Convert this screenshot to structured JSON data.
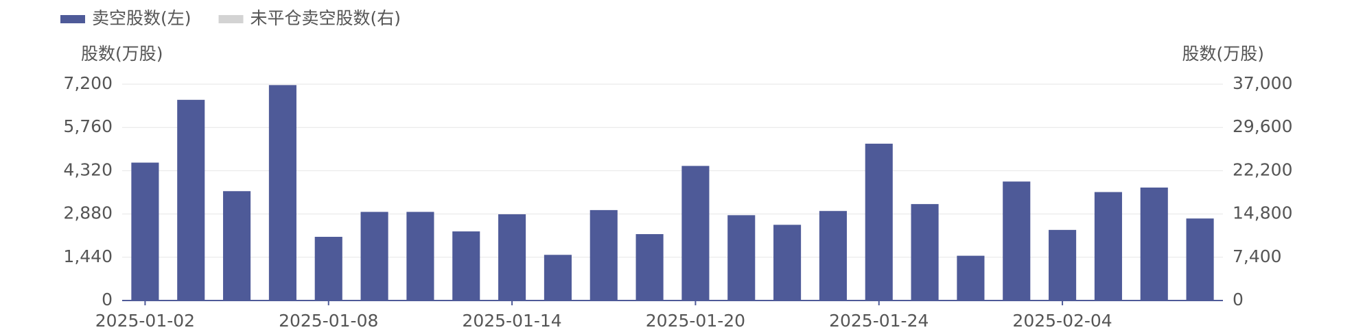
{
  "chart_data": {
    "type": "bar",
    "series": [
      {
        "name": "卖空股数(左)",
        "color": "#4e5a98",
        "values": [
          4590,
          6680,
          3640,
          7170,
          2120,
          2950,
          2950,
          2300,
          2870,
          1520,
          3010,
          2210,
          4480,
          2840,
          2520,
          2980,
          5220,
          3210,
          1490,
          3960,
          2350,
          3610,
          3760,
          2730
        ]
      },
      {
        "name": "未平仓卖空股数(右)",
        "color": "#d3d3d3",
        "axis": "y2",
        "visible": false,
        "values": [
          null,
          null,
          null,
          null,
          null,
          null,
          null,
          null,
          null,
          null,
          null,
          null,
          null,
          null,
          null,
          null,
          null,
          null,
          null,
          null,
          null,
          null,
          null,
          null
        ]
      }
    ],
    "categories": [
      "2025-01-02",
      null,
      null,
      null,
      "2025-01-08",
      null,
      null,
      null,
      "2025-01-14",
      null,
      null,
      null,
      "2025-01-20",
      null,
      null,
      null,
      "2025-01-24",
      null,
      null,
      null,
      "2025-02-04",
      null,
      null,
      null
    ],
    "y_label": "股数(万股)",
    "y2_label": "股数(万股)",
    "ylim": [
      0,
      7200
    ],
    "yticks": [
      0,
      {
        "value": 1440,
        "label": "1,440"
      },
      {
        "value": 2880,
        "label": "2,880"
      },
      {
        "value": 4320,
        "label": "4,320"
      },
      {
        "value": 5760,
        "label": "5,760"
      },
      {
        "value": 7200,
        "label": "7,200"
      }
    ],
    "y2lim": [
      0,
      37000
    ],
    "y2ticks": [
      0,
      {
        "value": 7400,
        "label": "7,400"
      },
      {
        "value": 14800,
        "label": "14,800"
      },
      {
        "value": 22200,
        "label": "22,200"
      },
      {
        "value": 29600,
        "label": "29,600"
      },
      {
        "value": 37000,
        "label": "37,000"
      }
    ],
    "grid": true,
    "legend": "top-left"
  }
}
